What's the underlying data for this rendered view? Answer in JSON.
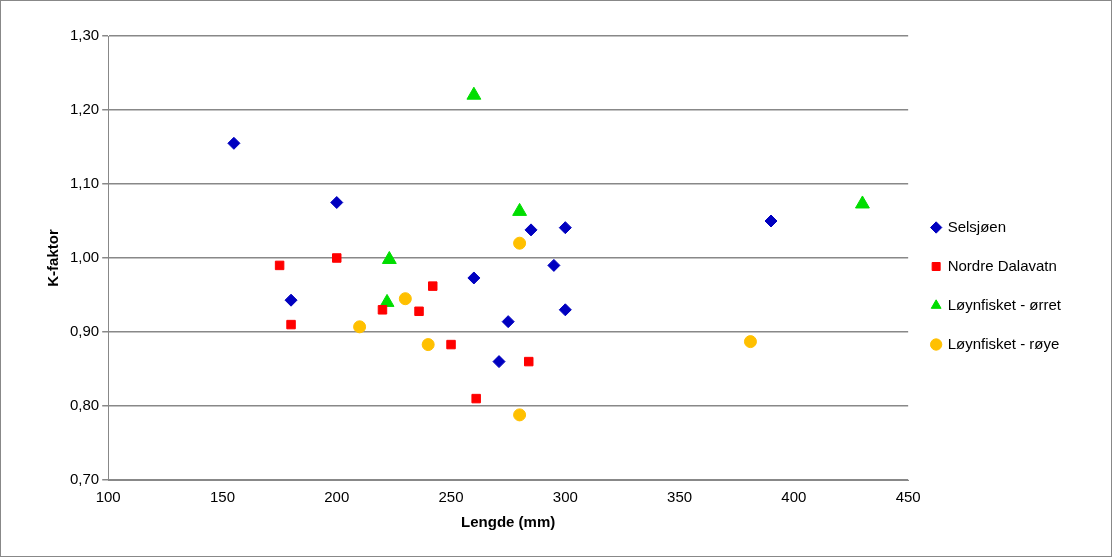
{
  "chart_data": {
    "type": "scatter",
    "xlabel": "Lengde (mm)",
    "ylabel": "K-faktor",
    "xlim": [
      100,
      450
    ],
    "xticks": [
      100,
      150,
      200,
      250,
      300,
      350,
      400,
      450
    ],
    "ylim": [
      0.7,
      1.3
    ],
    "yticks": [
      {
        "value": 0.7,
        "label": "0,70"
      },
      {
        "value": 0.8,
        "label": "0,80"
      },
      {
        "value": 0.9,
        "label": "0,90"
      },
      {
        "value": 1.0,
        "label": "1,00"
      },
      {
        "value": 1.1,
        "label": "1,10"
      },
      {
        "value": 1.2,
        "label": "1,20"
      },
      {
        "value": 1.3,
        "label": "1,30"
      }
    ],
    "grid": "y",
    "legend": "right",
    "series": [
      {
        "name": "Selsjøen",
        "color": "#0000c0",
        "marker": "diamond",
        "x": [
          155,
          180,
          200,
          260,
          271,
          275,
          285,
          295,
          300,
          300,
          390
        ],
        "values": [
          1.155,
          0.943,
          1.075,
          0.973,
          0.86,
          0.914,
          1.038,
          0.99,
          1.041,
          0.93,
          1.05
        ]
      },
      {
        "name": "Nordre Dalavatn",
        "color": "#ff0000",
        "marker": "square",
        "x": [
          175,
          180,
          200,
          220,
          236,
          242,
          250,
          261,
          284
        ],
        "values": [
          0.99,
          0.91,
          1.0,
          0.93,
          0.928,
          0.962,
          0.883,
          0.81,
          0.86
        ]
      },
      {
        "name": "Løynfisket - ørret",
        "color": "#00dd00",
        "marker": "triangle",
        "x": [
          223,
          222,
          260,
          280,
          430
        ],
        "values": [
          0.998,
          0.94,
          1.22,
          1.063,
          1.073
        ]
      },
      {
        "name": "Løynfisket - røye",
        "color": "#ffc000",
        "marker": "circle",
        "x": [
          210,
          230,
          240,
          280,
          280,
          381
        ],
        "values": [
          0.907,
          0.945,
          0.883,
          1.02,
          0.788,
          0.887
        ]
      }
    ]
  }
}
